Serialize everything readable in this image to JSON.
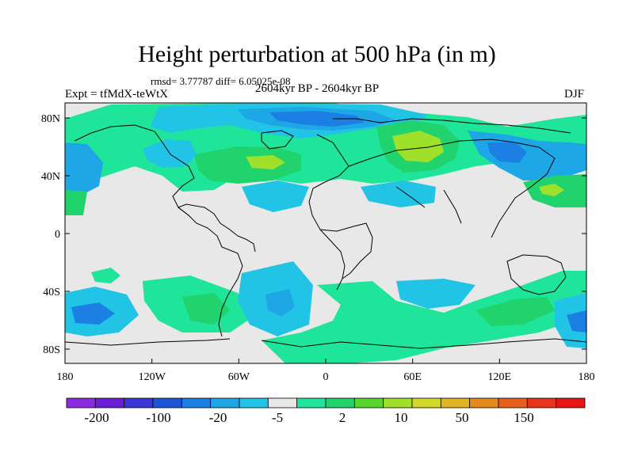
{
  "title": "Height perturbation at 500 hPa (in m)",
  "stats": "rmsd= 3.77787 diff= 6.05025e-08",
  "expt": "Expt = tfMdX-teWtX",
  "period": "2604kyr BP - 2604kyr BP",
  "season": "DJF",
  "lat_labels": [
    "80N",
    "40N",
    "0",
    "40S",
    "80S"
  ],
  "lon_labels": [
    "180",
    "120W",
    "60W",
    "0",
    "60E",
    "120E",
    "180"
  ],
  "colorbar": {
    "labels": [
      "-200",
      "-100",
      "-20",
      "-5",
      "2",
      "10",
      "50",
      "150"
    ],
    "colors": [
      "#8a2be2",
      "#6a1fd6",
      "#3a36d8",
      "#1c55d8",
      "#1b7fe3",
      "#1da7e6",
      "#22c4e6",
      "#e8e8e8",
      "#1ee59a",
      "#20d36c",
      "#58d52c",
      "#9fe02a",
      "#d3d82a",
      "#e0b422",
      "#e58a1e",
      "#e85e1c",
      "#e8341b",
      "#e81515"
    ]
  },
  "colors": {
    "background": "#ffffff",
    "neutral": "#e8e8e8",
    "light_blue": "#22c4e6",
    "mid_blue": "#1da7e6",
    "blue": "#1b7fe3",
    "dark_blue": "#1c55d8",
    "teal": "#1ee59a",
    "green": "#20d36c",
    "yellow_green": "#9fe02a"
  }
}
